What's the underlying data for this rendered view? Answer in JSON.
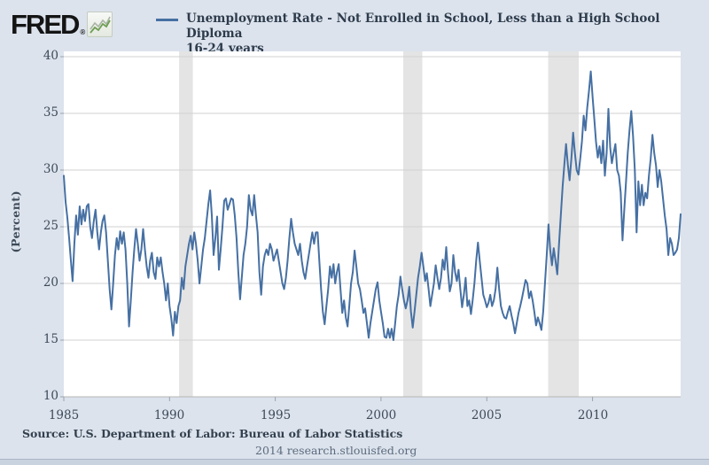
{
  "header": {
    "logo_text": "FRED",
    "logo_registered_mark": "®"
  },
  "legend": {
    "swatch_color": "#4670a3",
    "line1": "Unemployment Rate - Not Enrolled in School, Less than a High School Diploma",
    "line2": "16-24 years"
  },
  "y_axis_title": "(Percent)",
  "source": "Source: U.S. Department of Labor: Bureau of Labor Statistics",
  "footer": "2014 research.stlouisfed.org",
  "colors": {
    "background": "#dce3ed",
    "plot_background": "#ffffff",
    "gridline": "#d2d2d2",
    "axis": "#b4b4b4",
    "tick": "#9aa3ad",
    "recession_band": "#e4e4e4",
    "line": "#4670a3",
    "logo_icon_green": "#6f9e53",
    "logo_icon_gray": "#aab5a4"
  },
  "chart_data": {
    "type": "line",
    "title": "Unemployment Rate - Not Enrolled in School, Less than a High School Diploma 16-24 years",
    "xlabel": "",
    "ylabel": "(Percent)",
    "ylim": [
      10,
      40
    ],
    "y_ticks": [
      40,
      35,
      30,
      25,
      20,
      15,
      10
    ],
    "x_ticks": [
      1985,
      1990,
      1995,
      2000,
      2005,
      2010
    ],
    "x_start": 1985.0,
    "x_end": 2014.1667,
    "frequency": "monthly",
    "grid": true,
    "legend_position": "top",
    "recession_bands": [
      [
        1990.45,
        1991.1
      ],
      [
        2001.05,
        2001.95
      ],
      [
        2007.9,
        2009.35
      ]
    ],
    "series": [
      {
        "name": "Unemployment Rate - Not Enrolled in School, Less than a High School Diploma 16-24 years",
        "color": "#4670a3",
        "values": [
          29.5,
          27.2,
          25.8,
          24.0,
          22.0,
          20.2,
          23.5,
          26.0,
          24.3,
          26.8,
          25.2,
          26.5,
          25.5,
          26.8,
          27.0,
          25.0,
          24.0,
          25.5,
          26.5,
          24.5,
          23.0,
          24.5,
          25.5,
          26.0,
          24.5,
          22.0,
          19.5,
          17.7,
          20.0,
          22.5,
          24.0,
          23.0,
          24.6,
          23.5,
          24.5,
          23.0,
          20.0,
          16.2,
          18.5,
          21.0,
          23.0,
          24.8,
          23.5,
          22.0,
          23.0,
          24.8,
          23.0,
          21.5,
          20.5,
          22.0,
          22.7,
          21.0,
          20.4,
          22.3,
          21.5,
          22.3,
          21.0,
          20.0,
          18.5,
          20.0,
          18.0,
          16.9,
          15.4,
          17.5,
          16.5,
          18.0,
          18.5,
          20.5,
          19.5,
          21.5,
          22.5,
          23.5,
          24.2,
          23.0,
          24.5,
          23.5,
          22.0,
          20.0,
          21.5,
          23.0,
          24.0,
          25.5,
          27.0,
          28.2,
          26.0,
          22.5,
          24.0,
          25.9,
          21.2,
          23.0,
          25.0,
          27.3,
          27.5,
          26.5,
          27.0,
          27.5,
          27.4,
          26.0,
          24.0,
          21.0,
          18.6,
          20.5,
          22.5,
          23.5,
          25.0,
          27.8,
          26.5,
          26.0,
          27.8,
          26.0,
          24.5,
          21.0,
          19.0,
          21.5,
          22.5,
          23.0,
          22.5,
          23.5,
          23.0,
          22.0,
          22.5,
          23.0,
          22.0,
          21.0,
          20.0,
          19.5,
          20.5,
          22.0,
          24.0,
          25.7,
          24.5,
          23.5,
          23.0,
          22.5,
          23.5,
          22.0,
          21.0,
          20.4,
          21.5,
          22.5,
          23.5,
          24.5,
          23.5,
          24.5,
          24.5,
          22.0,
          19.5,
          17.5,
          16.4,
          18.0,
          19.5,
          21.5,
          20.5,
          21.7,
          20.0,
          21.0,
          21.7,
          19.5,
          17.4,
          18.5,
          17.0,
          16.2,
          18.0,
          20.0,
          21.0,
          22.9,
          21.5,
          20.0,
          19.5,
          18.5,
          17.4,
          17.8,
          16.5,
          15.2,
          16.5,
          17.5,
          18.5,
          19.5,
          20.1,
          18.5,
          17.5,
          16.5,
          15.3,
          15.2,
          16.0,
          15.2,
          16.0,
          15.0,
          16.5,
          18.0,
          19.0,
          20.6,
          19.5,
          18.5,
          17.8,
          18.5,
          19.7,
          17.5,
          16.1,
          17.5,
          19.0,
          20.5,
          21.5,
          22.7,
          21.5,
          20.2,
          20.9,
          19.5,
          18.0,
          19.0,
          20.0,
          21.6,
          20.5,
          19.5,
          20.5,
          22.1,
          21.2,
          23.2,
          21.0,
          19.3,
          20.0,
          22.5,
          21.0,
          20.2,
          21.2,
          19.5,
          17.9,
          19.0,
          20.5,
          18.0,
          18.5,
          17.3,
          18.5,
          20.0,
          22.0,
          23.6,
          22.0,
          20.5,
          19.0,
          18.5,
          17.9,
          18.3,
          19.0,
          18.0,
          18.5,
          19.5,
          21.4,
          19.5,
          18.0,
          17.4,
          17.0,
          16.9,
          17.5,
          18.0,
          17.2,
          16.5,
          15.6,
          16.5,
          17.4,
          18.0,
          18.7,
          19.5,
          20.3,
          20.0,
          18.7,
          19.3,
          18.5,
          17.5,
          16.3,
          17.0,
          16.5,
          15.9,
          17.5,
          20.0,
          22.5,
          25.2,
          23.0,
          21.6,
          23.1,
          22.0,
          20.8,
          23.5,
          26.0,
          28.5,
          30.5,
          32.3,
          30.5,
          29.1,
          31.0,
          33.3,
          31.5,
          30.0,
          29.6,
          31.0,
          32.5,
          34.8,
          33.5,
          35.5,
          37.0,
          38.7,
          36.5,
          34.5,
          32.5,
          31.1,
          32.1,
          30.6,
          32.6,
          29.5,
          31.5,
          35.4,
          32.0,
          30.6,
          31.5,
          32.3,
          30.0,
          29.5,
          28.0,
          23.8,
          26.5,
          29.0,
          31.5,
          33.5,
          35.2,
          33.0,
          30.0,
          24.5,
          29.0,
          26.9,
          28.7,
          26.9,
          28.0,
          27.5,
          29.5,
          31.0,
          33.1,
          31.5,
          30.4,
          28.5,
          30.0,
          29.0,
          27.5,
          26.0,
          24.8,
          22.5,
          24.0,
          23.5,
          22.5,
          22.7,
          23.0,
          24.0,
          26.1
        ]
      }
    ]
  }
}
